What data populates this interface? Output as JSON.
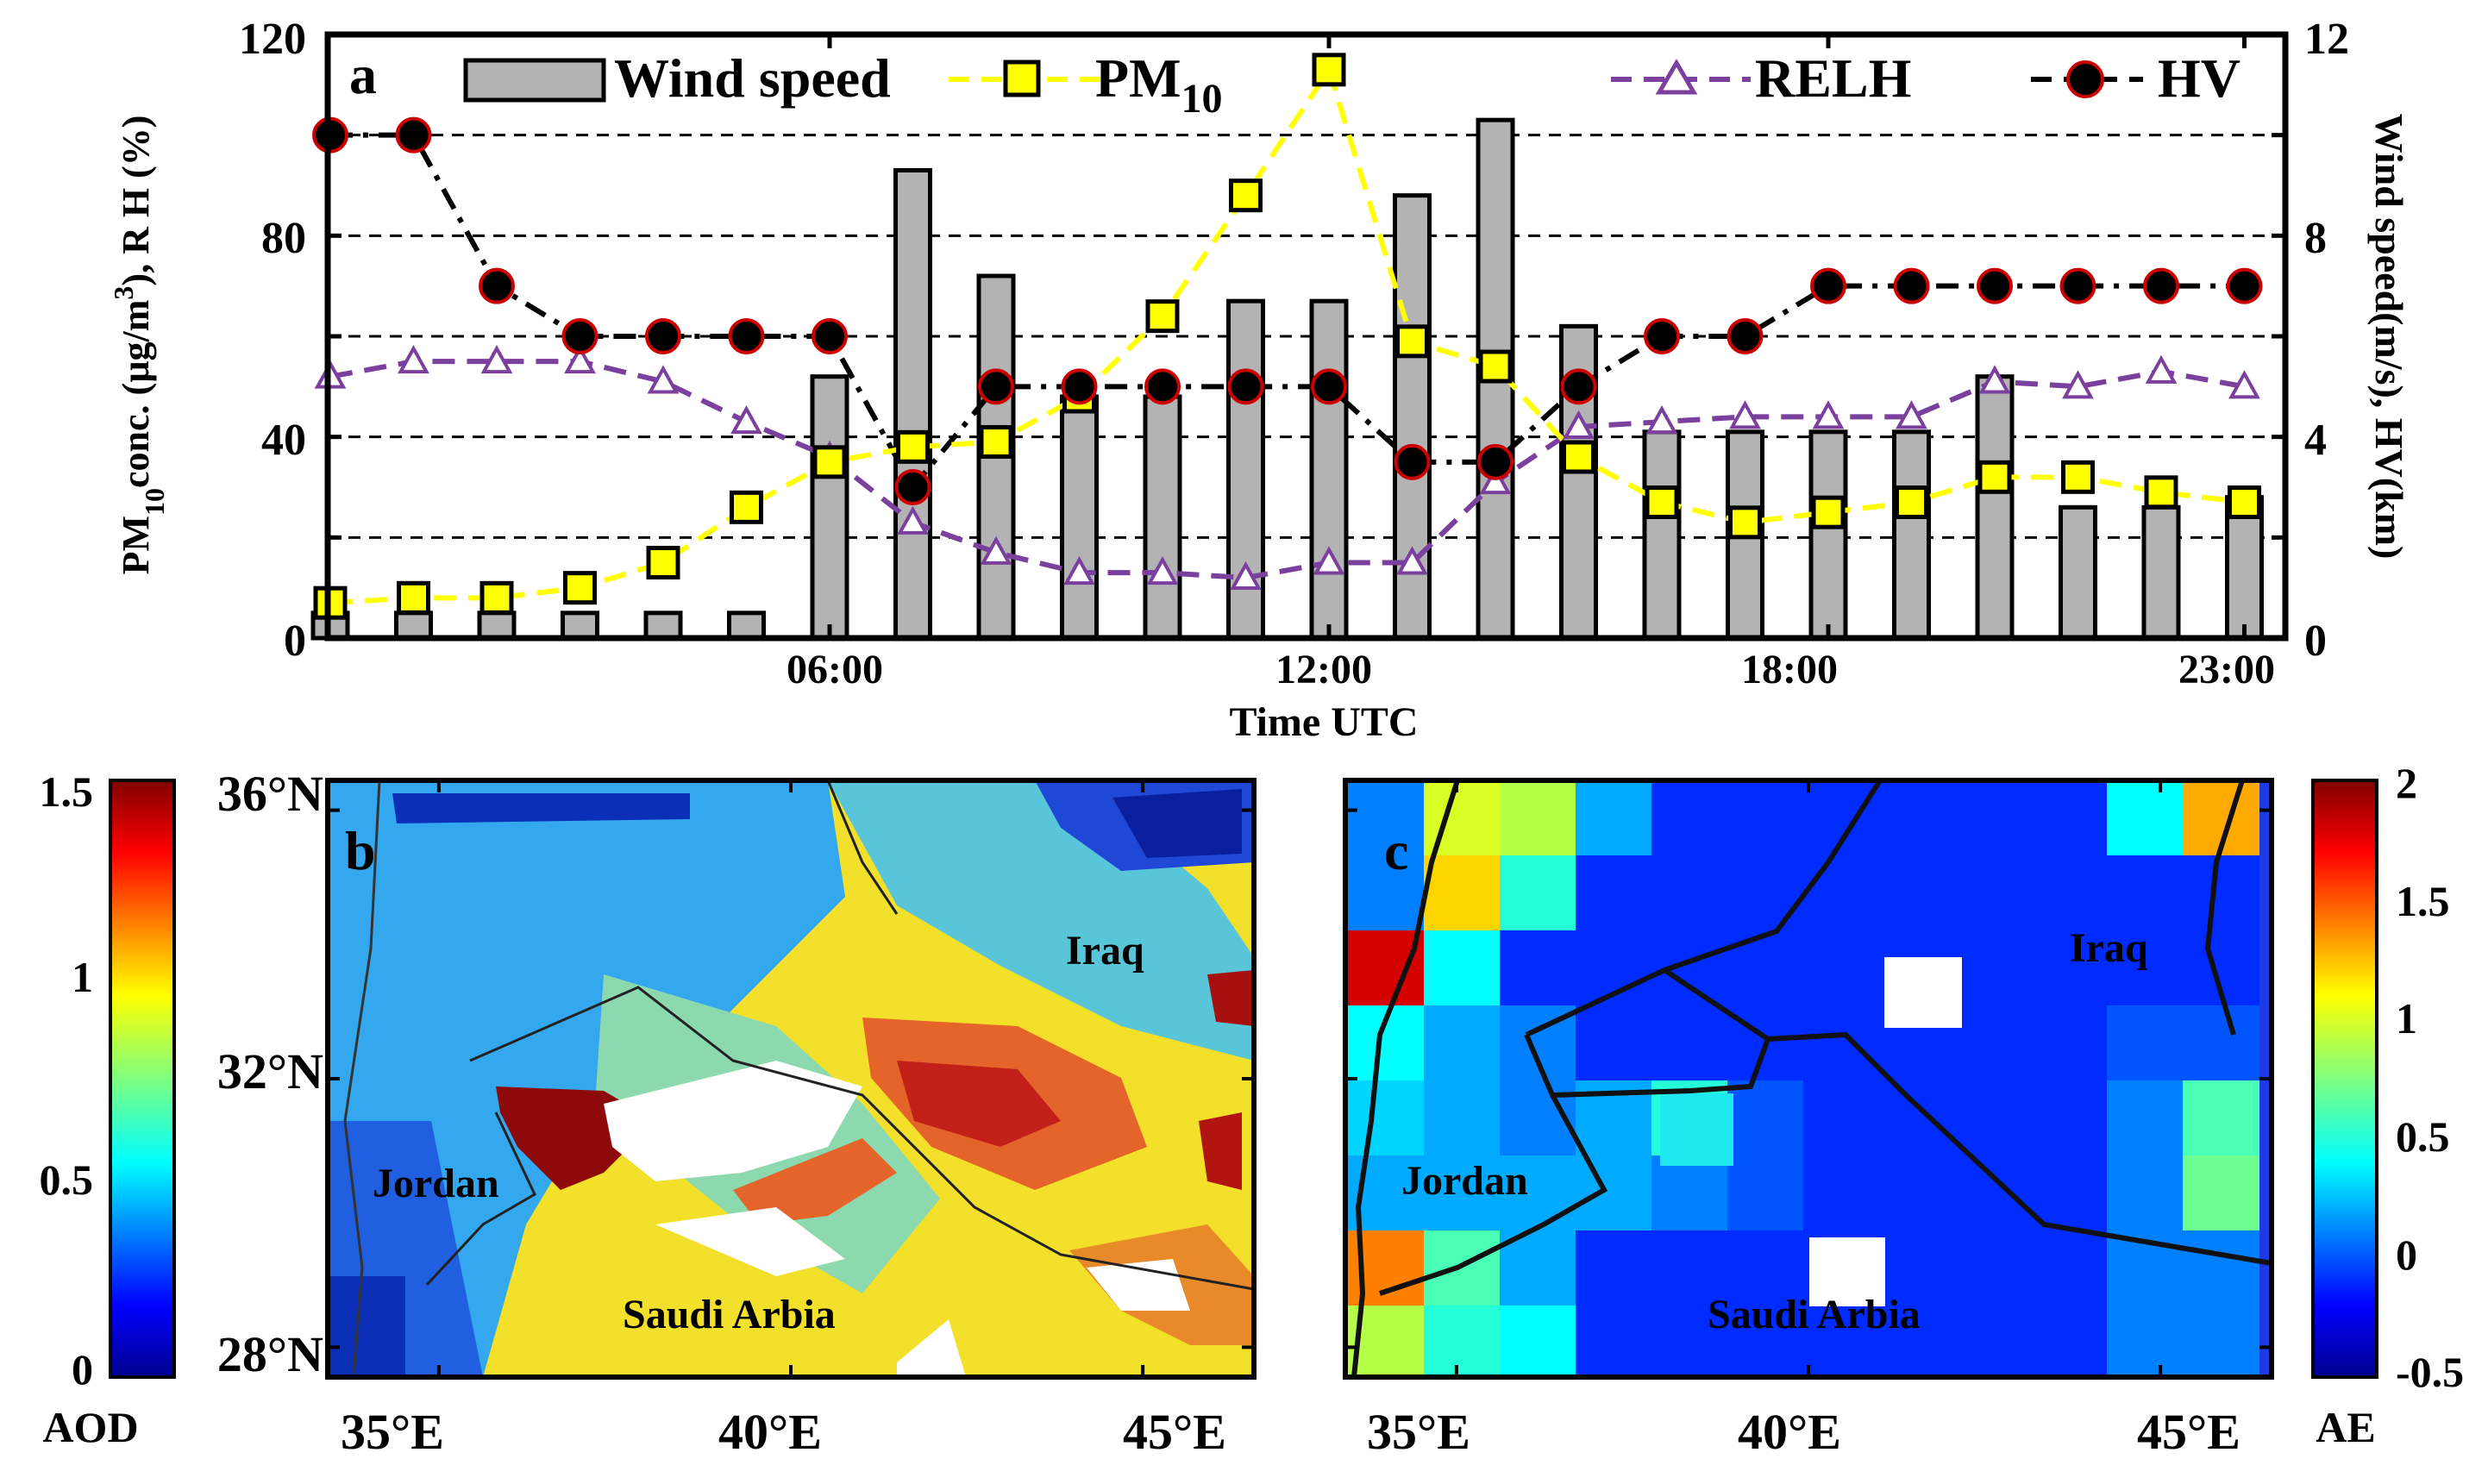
{
  "chart_data": [
    {
      "panel": "a",
      "type": "bar+line",
      "xlabel": "Time UTC",
      "ylabel_left_parts": [
        "PM",
        "10",
        "conc. (µg/m",
        "3",
        "), R H (%)"
      ],
      "ylabel_right": "Wind speed(m/s), HV(km)",
      "hours": [
        0,
        1,
        2,
        3,
        4,
        5,
        6,
        7,
        8,
        9,
        10,
        11,
        12,
        13,
        14,
        15,
        16,
        17,
        18,
        19,
        20,
        21,
        22,
        23
      ],
      "x_ticks": [
        "06:00",
        "12:00",
        "18:00",
        "23:00"
      ],
      "ylim_left": [
        0,
        120
      ],
      "ylim_right": [
        0,
        12
      ],
      "y_ticks_left": [
        "0",
        "40",
        "80",
        "120"
      ],
      "y_ticks_right": [
        "0",
        "4",
        "8",
        "12"
      ],
      "series": [
        {
          "name": "Wind speed",
          "axis": "right",
          "kind": "bar",
          "color": "#b3b3b3",
          "values": [
            0.5,
            0.5,
            0.5,
            0.5,
            0.5,
            0.5,
            5.2,
            9.3,
            7.2,
            4.8,
            4.8,
            6.7,
            6.7,
            8.8,
            10.3,
            6.2,
            4.1,
            4.1,
            4.1,
            4.1,
            5.2,
            2.6,
            2.6,
            2.8
          ]
        },
        {
          "name": "PM",
          "name_sub": "10",
          "axis": "left",
          "kind": "line",
          "color": "#ffff00",
          "marker": "square",
          "values": [
            7,
            8,
            8,
            10,
            15,
            26,
            35,
            38,
            39,
            48,
            64,
            88,
            113,
            59,
            54,
            36,
            27,
            23,
            25,
            27,
            32,
            32,
            29,
            27
          ]
        },
        {
          "name": "RELH",
          "axis": "left",
          "kind": "line",
          "color": "#7b3f9e",
          "marker": "triangle",
          "values": [
            52,
            55,
            55,
            55,
            51,
            43,
            36,
            23,
            17,
            13,
            13,
            12,
            15,
            15,
            31,
            42,
            43,
            44,
            44,
            44,
            51,
            50,
            53,
            50
          ]
        },
        {
          "name": "HV",
          "axis": "right",
          "kind": "line",
          "color": "#000000",
          "marker": "circle",
          "values": [
            10,
            10,
            7,
            6,
            6,
            6,
            6,
            3,
            5,
            5,
            5,
            5,
            5,
            3.5,
            3.5,
            5,
            6,
            6,
            7,
            7,
            7,
            7,
            7,
            7
          ]
        }
      ]
    },
    {
      "panel": "b",
      "type": "heatmap",
      "variable": "AOD",
      "colorbar_label": "AOD",
      "colorbar_ticks": [
        "0",
        "0.5",
        "1",
        "1.5"
      ],
      "colorbar_range": [
        0,
        1.5
      ],
      "lat_ticks": [
        "28°N",
        "32°N",
        "36°N"
      ],
      "lon_ticks": [
        "35°E",
        "40°E",
        "45°E"
      ],
      "regions": [
        "Iraq",
        "Jordan",
        "Saudi Arbia"
      ]
    },
    {
      "panel": "c",
      "type": "heatmap",
      "variable": "AE",
      "colorbar_label": "AE",
      "colorbar_ticks": [
        "-0.5",
        "0",
        "0.5",
        "1",
        "1.5",
        "2"
      ],
      "colorbar_range": [
        -0.5,
        2
      ],
      "lon_ticks": [
        "35°E",
        "40°E",
        "45°E"
      ],
      "regions": [
        "Iraq",
        "Jordan",
        "Saudi Arbia"
      ]
    }
  ]
}
